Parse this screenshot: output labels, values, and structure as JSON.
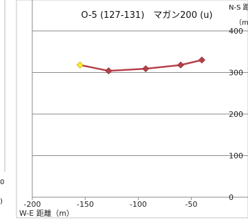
{
  "chart_data": {
    "type": "line",
    "title": "O-5 (127-131)　マガン200 (u)",
    "xlabel": "W-E 距離（m）",
    "ylabel": "N-S 距離（m）",
    "ylabel_visible": [
      "N-S 距",
      "（m"
    ],
    "x_ticks": [
      "-200",
      "-150",
      "-100",
      "-50"
    ],
    "y_ticks": [
      "0",
      "100",
      "200",
      "300",
      "400"
    ],
    "xlim": [
      -200,
      -25
    ],
    "ylim": [
      0,
      400
    ],
    "grid": "horizontal",
    "series": [
      {
        "color": "#b5414b",
        "points": [
          {
            "x": -155,
            "y": 318
          },
          {
            "x": -128,
            "y": 304
          },
          {
            "x": -93,
            "y": 309
          },
          {
            "x": -60,
            "y": 318
          },
          {
            "x": -40,
            "y": 330
          }
        ]
      }
    ],
    "start_marker_color": "#ffee33",
    "left_panel_ticks": [
      "0",
      ")"
    ]
  }
}
